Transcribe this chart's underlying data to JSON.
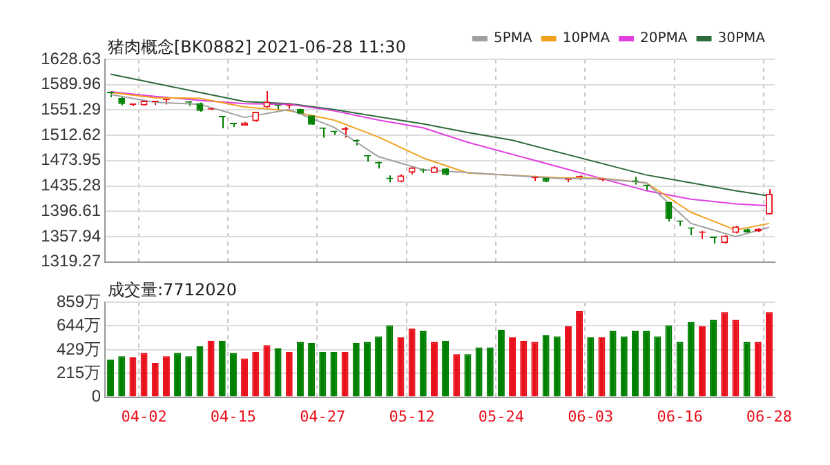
{
  "chart_data": [
    {
      "type": "candlestick",
      "title": "猪肉概念[BK0882]  2021-06-28  11:30",
      "categories": [
        null,
        null,
        null,
        null,
        null,
        null,
        null,
        null,
        null,
        null,
        null,
        null,
        null,
        null,
        null,
        null,
        null,
        null,
        null,
        null,
        null,
        null,
        null,
        null,
        null,
        null,
        null,
        null,
        null,
        null,
        null,
        null,
        null,
        null,
        null,
        null,
        null,
        null,
        null,
        null,
        null,
        null,
        null,
        null,
        null,
        null,
        null,
        null,
        null,
        null,
        null,
        null,
        null,
        null,
        null,
        null,
        null,
        null,
        null,
        null
      ],
      "ohlc": [
        [
          1578.0,
          1580.1,
          1571.0,
          1577.0
        ],
        [
          1569.6,
          1571.0,
          1558.3,
          1560.4
        ],
        [
          1559.0,
          1561.1,
          1556.9,
          1560.4
        ],
        [
          1558.3,
          1566.8,
          1558.3,
          1565.4
        ],
        [
          1563.3,
          1565.4,
          1559.0,
          1564.0
        ],
        [
          1566.1,
          1568.2,
          1559.7,
          1566.8
        ],
        null,
        [
          1563.2,
          1564.0,
          1557.6,
          1562.5
        ],
        [
          1561.8,
          1562.5,
          1548.5,
          1549.9
        ],
        [
          1552.0,
          1553.4,
          1551.3,
          1552.7
        ],
        [
          1540.7,
          1541.4,
          1523.2,
          1540.0
        ],
        [
          1530.2,
          1530.9,
          1525.3,
          1529.5
        ],
        [
          1527.4,
          1533.0,
          1527.4,
          1532.3
        ],
        [
          1534.4,
          1548.5,
          1533.0,
          1548.5
        ],
        [
          1555.5,
          1580.1,
          1554.8,
          1564.0
        ],
        [
          1558.3,
          1559.0,
          1551.3,
          1557.6
        ],
        [
          1557.6,
          1559.0,
          1553.4,
          1558.3
        ],
        [
          1552.7,
          1553.4,
          1544.9,
          1545.6
        ],
        [
          1542.9,
          1542.9,
          1528.8,
          1528.8
        ],
        [
          1523.2,
          1523.9,
          1509.1,
          1522.5
        ],
        [
          1518.2,
          1518.2,
          1513.3,
          1517.5
        ],
        [
          1521.1,
          1525.3,
          1509.1,
          1521.8
        ],
        [
          1504.2,
          1506.3,
          1497.2,
          1503.5
        ],
        [
          1480.9,
          1480.9,
          1472.5,
          1480.2
        ],
        [
          1470.4,
          1472.5,
          1462.0,
          1469.7
        ],
        [
          1446.4,
          1451.4,
          1440.9,
          1445.7
        ],
        [
          1441.6,
          1452.8,
          1440.9,
          1451.4
        ],
        [
          1455.6,
          1465.5,
          1452.8,
          1463.4
        ],
        [
          1459.2,
          1462.0,
          1455.0,
          1458.5
        ],
        [
          1455.0,
          1465.5,
          1455.0,
          1464.1
        ],
        [
          1462.0,
          1462.7,
          1451.4,
          1452.1
        ],
        null,
        null,
        null,
        null,
        null,
        null,
        null,
        [
          1447.2,
          1450.7,
          1443.0,
          1447.9
        ],
        [
          1447.9,
          1448.6,
          1440.9,
          1441.6
        ],
        null,
        [
          1444.4,
          1447.9,
          1440.9,
          1445.1
        ],
        [
          1448.6,
          1451.4,
          1444.4,
          1449.3
        ],
        null,
        [
          1444.4,
          1446.5,
          1442.3,
          1445.1
        ],
        null,
        null,
        [
          1442.3,
          1449.3,
          1437.4,
          1441.6
        ],
        [
          1436.0,
          1436.7,
          1428.9,
          1435.3
        ],
        null,
        [
          1410.6,
          1411.3,
          1381.1,
          1385.3
        ],
        [
          1381.1,
          1381.8,
          1374.1,
          1380.4
        ],
        [
          1370.6,
          1371.3,
          1360.0,
          1369.9
        ],
        [
          1363.6,
          1366.4,
          1354.4,
          1364.3
        ],
        [
          1356.5,
          1357.9,
          1347.4,
          1355.8
        ],
        [
          1348.1,
          1360.0,
          1347.4,
          1359.3
        ],
        [
          1363.6,
          1374.1,
          1362.9,
          1373.4
        ],
        [
          1369.2,
          1369.9,
          1363.6,
          1364.3
        ],
        [
          1365.7,
          1370.6,
          1365.0,
          1369.9
        ],
        [
          1391.7,
          1430.3,
          1391.7,
          1423.3
        ]
      ],
      "colors": [
        "#008000",
        "#008000",
        "#e8101a",
        "#e8101a",
        "#e8101a",
        "#e8101a",
        "#008000",
        "#008000",
        "#008000",
        "#e8101a",
        "#008000",
        "#008000",
        "#e8101a",
        "#e8101a",
        "#e8101a",
        "#008000",
        "#e8101a",
        "#008000",
        "#008000",
        "#008000",
        "#008000",
        "#e8101a",
        "#008000",
        "#008000",
        "#008000",
        "#008000",
        "#e8101a",
        "#e8101a",
        "#008000",
        "#e8101a",
        "#008000",
        "#e8101a",
        "#008000",
        "#008000",
        "#008000",
        "#008000",
        "#e8101a",
        "#e8101a",
        "#e8101a",
        "#008000",
        "#008000",
        "#e8101a",
        "#e8101a",
        "#008000",
        "#e8101a",
        "#008000",
        "#008000",
        "#008000",
        "#008000",
        "#008000",
        "#008000",
        "#008000",
        "#008000",
        "#e8101a",
        "#008000",
        "#e8101a",
        "#e8101a",
        "#008000",
        "#e8101a",
        "#e8101a"
      ],
      "series": [
        {
          "name": "5PMA",
          "type": "line",
          "color": "#a0a0a0",
          "values": [
            1575,
            null,
            null,
            null,
            1563,
            null,
            null,
            null,
            1560,
            null,
            null,
            null,
            1540,
            null,
            null,
            null,
            1552,
            null,
            null,
            null,
            1525,
            null,
            null,
            null,
            1480,
            null,
            null,
            null,
            1460,
            null,
            null,
            null,
            null,
            null,
            null,
            null,
            null,
            null,
            null,
            null,
            1447,
            null,
            null,
            null,
            1446,
            null,
            null,
            null,
            1440,
            null,
            null,
            null,
            1378,
            null,
            null,
            null,
            1358,
            null,
            null,
            1372
          ]
        },
        {
          "name": "10PMA",
          "type": "line",
          "color": "#f0a020",
          "values": [
            1578,
            null,
            null,
            null,
            1570,
            null,
            null,
            null,
            1569,
            null,
            null,
            null,
            1556,
            null,
            null,
            null,
            1550,
            null,
            null,
            null,
            1536,
            null,
            null,
            null,
            1510,
            null,
            null,
            null,
            1478,
            null,
            null,
            null,
            1455,
            null,
            null,
            null,
            null,
            null,
            null,
            null,
            1448,
            null,
            null,
            null,
            1447,
            null,
            null,
            null,
            1440,
            null,
            null,
            null,
            1395,
            null,
            null,
            null,
            1368,
            null,
            null,
            1378
          ]
        },
        {
          "name": "20PMA",
          "type": "line",
          "color": "#e040e0",
          "values": [
            1579,
            null,
            null,
            null,
            1572,
            null,
            null,
            null,
            1566,
            null,
            null,
            null,
            1561,
            null,
            null,
            null,
            1560,
            null,
            null,
            null,
            1550,
            null,
            null,
            null,
            1536,
            null,
            null,
            null,
            1524,
            null,
            null,
            null,
            1502,
            null,
            null,
            null,
            null,
            null,
            null,
            null,
            null,
            null,
            null,
            null,
            null,
            null,
            null,
            null,
            1428,
            null,
            null,
            null,
            1415,
            null,
            null,
            null,
            1408,
            null,
            null,
            1405
          ]
        },
        {
          "name": "30PMA",
          "type": "line",
          "color": "#2e6b3a",
          "values": [
            1606,
            null,
            null,
            null,
            1592,
            null,
            null,
            null,
            1578,
            null,
            null,
            null,
            1564,
            null,
            null,
            null,
            1561,
            null,
            null,
            null,
            1552,
            null,
            null,
            null,
            1541,
            null,
            null,
            null,
            1530,
            null,
            null,
            null,
            1517,
            null,
            null,
            null,
            1505,
            null,
            null,
            null,
            null,
            null,
            null,
            null,
            null,
            null,
            null,
            null,
            1452,
            null,
            null,
            null,
            1440,
            null,
            null,
            null,
            1428,
            null,
            null,
            1420
          ]
        }
      ],
      "ylim": [
        1319.27,
        1628.63
      ],
      "yticks": [
        1319.27,
        1357.94,
        1396.61,
        1435.28,
        1473.95,
        1512.62,
        1551.29,
        1589.96,
        1628.63
      ],
      "grid": true,
      "legend": "top right",
      "tick_labels": "y"
    },
    {
      "type": "bar",
      "title": "成交量:7712020",
      "categories": [
        null,
        null,
        null,
        "04-02",
        null,
        null,
        null,
        null,
        null,
        null,
        null,
        "04-15",
        null,
        null,
        null,
        null,
        null,
        null,
        null,
        "04-27",
        null,
        null,
        null,
        null,
        null,
        null,
        null,
        "05-12",
        null,
        null,
        null,
        null,
        null,
        null,
        null,
        "05-24",
        null,
        null,
        null,
        null,
        null,
        null,
        null,
        "06-03",
        null,
        null,
        null,
        null,
        null,
        null,
        null,
        "06-16",
        null,
        null,
        null,
        null,
        null,
        null,
        null,
        "06-28"
      ],
      "values": [
        340,
        370,
        360,
        400,
        310,
        370,
        400,
        370,
        460,
        510,
        510,
        400,
        350,
        410,
        470,
        440,
        410,
        500,
        490,
        410,
        410,
        410,
        490,
        500,
        550,
        650,
        540,
        620,
        600,
        500,
        510,
        390,
        390,
        450,
        450,
        610,
        540,
        510,
        500,
        560,
        550,
        640,
        780,
        540,
        540,
        600,
        550,
        600,
        600,
        550,
        650,
        500,
        680,
        640,
        700,
        770,
        700,
        500,
        500,
        770
      ],
      "colors": [
        "#008000",
        "#008000",
        "#e8101a",
        "#e8101a",
        "#e8101a",
        "#e8101a",
        "#008000",
        "#008000",
        "#008000",
        "#e8101a",
        "#008000",
        "#008000",
        "#e8101a",
        "#e8101a",
        "#e8101a",
        "#008000",
        "#e8101a",
        "#008000",
        "#008000",
        "#008000",
        "#008000",
        "#e8101a",
        "#008000",
        "#008000",
        "#008000",
        "#008000",
        "#e8101a",
        "#e8101a",
        "#008000",
        "#e8101a",
        "#008000",
        "#e8101a",
        "#008000",
        "#008000",
        "#008000",
        "#008000",
        "#e8101a",
        "#e8101a",
        "#e8101a",
        "#008000",
        "#008000",
        "#e8101a",
        "#e8101a",
        "#008000",
        "#e8101a",
        "#008000",
        "#008000",
        "#008000",
        "#008000",
        "#008000",
        "#008000",
        "#008000",
        "#008000",
        "#e8101a",
        "#008000",
        "#e8101a",
        "#e8101a",
        "#008000",
        "#e8101a",
        "#e8101a"
      ],
      "ylim": [
        0,
        859
      ],
      "yticks": [
        0,
        {
          "value": 215,
          "label": "215万"
        },
        {
          "value": 429,
          "label": "429万"
        },
        {
          "value": 644,
          "label": "644万"
        },
        {
          "value": 859,
          "label": "859万"
        }
      ],
      "grid": true
    }
  ]
}
